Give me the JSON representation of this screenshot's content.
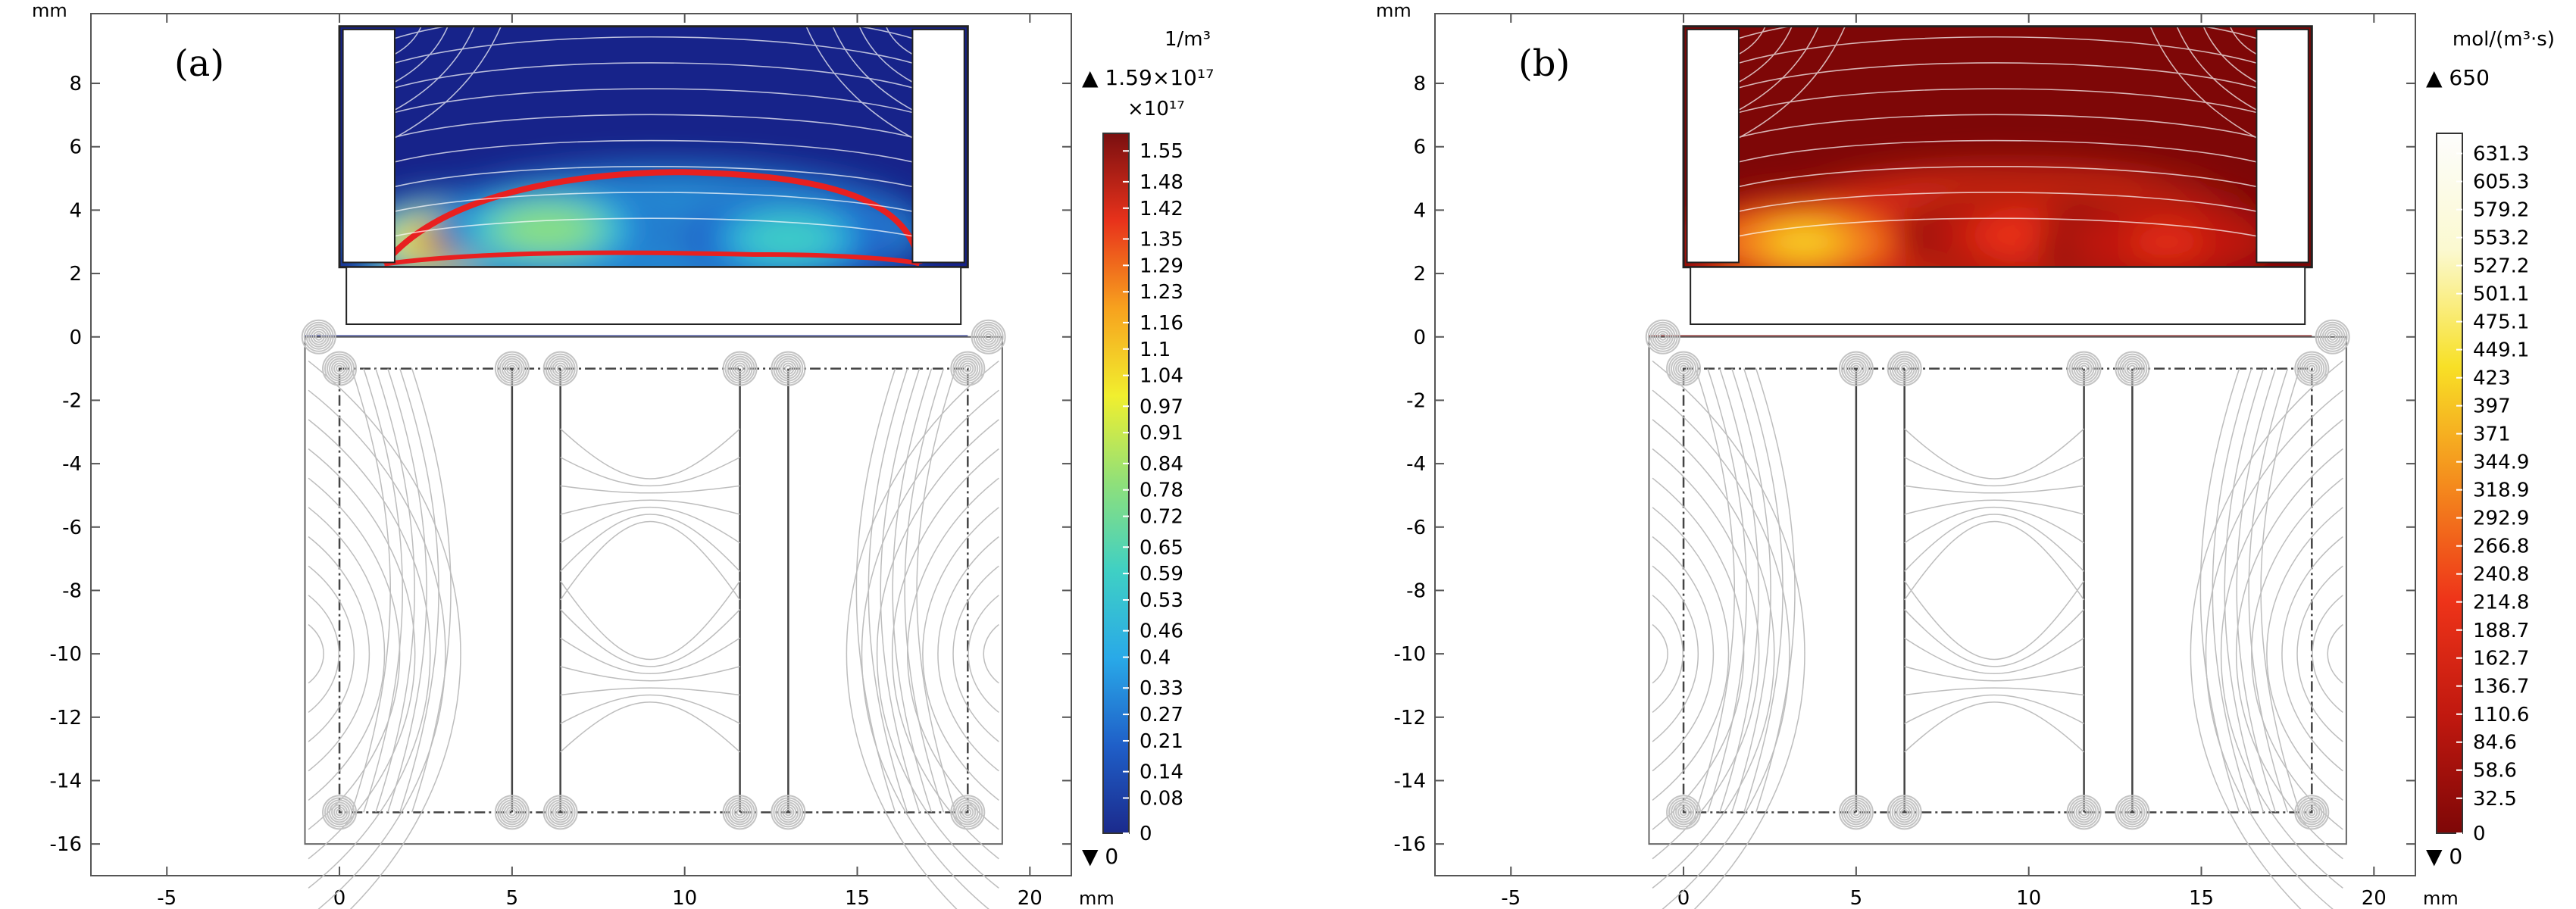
{
  "chart_data": [
    {
      "type": "heatmap",
      "panel_label": "(a)",
      "x_unit": "mm",
      "y_unit": "mm",
      "xlim": [
        -7.2,
        21.2
      ],
      "ylim": [
        -17.0,
        10.2
      ],
      "x_ticks": [
        -5,
        0,
        5,
        10,
        15,
        20
      ],
      "y_ticks": [
        8,
        6,
        4,
        2,
        0,
        -2,
        -4,
        -6,
        -8,
        -10,
        -12,
        -14,
        -16
      ],
      "colorbar": {
        "unit": "1/m³",
        "max_label": "▲ 1.59×10¹⁷",
        "min_label": "▼ 0",
        "multiplier": "×10¹⁷",
        "colors": [
          "#1b2a8c",
          "#1f5fc8",
          "#29a9e8",
          "#3fd0c4",
          "#8fe07a",
          "#f1ef2e",
          "#f7a21e",
          "#e8321b",
          "#7a0f10"
        ],
        "ticks": [
          "1.55",
          "1.48",
          "1.42",
          "1.35",
          "1.29",
          "1.23",
          "1.16",
          "1.1",
          "1.04",
          "0.97",
          "0.91",
          "0.84",
          "0.78",
          "0.72",
          "0.65",
          "0.59",
          "0.53",
          "0.46",
          "0.4",
          "0.33",
          "0.27",
          "0.21",
          "0.14",
          "0.08",
          "0"
        ],
        "min": 0,
        "max": 1.59
      },
      "field_background": "#17238a",
      "hotspots": [
        {
          "x": 3.5,
          "y": 3.0,
          "level": 1.0
        },
        {
          "x": 6.0,
          "y": 3.4,
          "level": 0.55
        },
        {
          "x": 13.0,
          "y": 3.1,
          "level": 0.4
        }
      ],
      "outline_color": "#e82020"
    },
    {
      "type": "heatmap",
      "panel_label": "(b)",
      "x_unit": "mm",
      "y_unit": "mm",
      "xlim": [
        -7.2,
        21.2
      ],
      "ylim": [
        -17.0,
        10.2
      ],
      "x_ticks": [
        -5,
        0,
        5,
        10,
        15,
        20
      ],
      "y_ticks": [
        8,
        6,
        4,
        2,
        0,
        -2,
        -4,
        -6,
        -8,
        -10,
        -12,
        -14,
        -16
      ],
      "colorbar": {
        "unit": "mol/(m³·s)",
        "max_label": "▲ 650",
        "min_label": "▼ 0",
        "colors": [
          "#7e0707",
          "#c0180f",
          "#ee3419",
          "#f48c1d",
          "#f8e026",
          "#fbf9d0",
          "#fdfdfd"
        ],
        "ticks": [
          "631.3",
          "605.3",
          "579.2",
          "553.2",
          "527.2",
          "501.1",
          "475.1",
          "449.1",
          "423",
          "397",
          "371",
          "344.9",
          "318.9",
          "292.9",
          "266.8",
          "240.8",
          "214.8",
          "188.7",
          "162.7",
          "136.7",
          "110.6",
          "84.6",
          "58.6",
          "32.5",
          "0"
        ],
        "min": 0,
        "max": 650
      },
      "field_background": "#7e0707",
      "hotspots": [
        {
          "x": 3.5,
          "y": 3.0,
          "level": 0.72
        },
        {
          "x": 10.0,
          "y": 3.2,
          "level": 0.35
        },
        {
          "x": 14.0,
          "y": 3.0,
          "level": 0.3
        }
      ]
    }
  ]
}
